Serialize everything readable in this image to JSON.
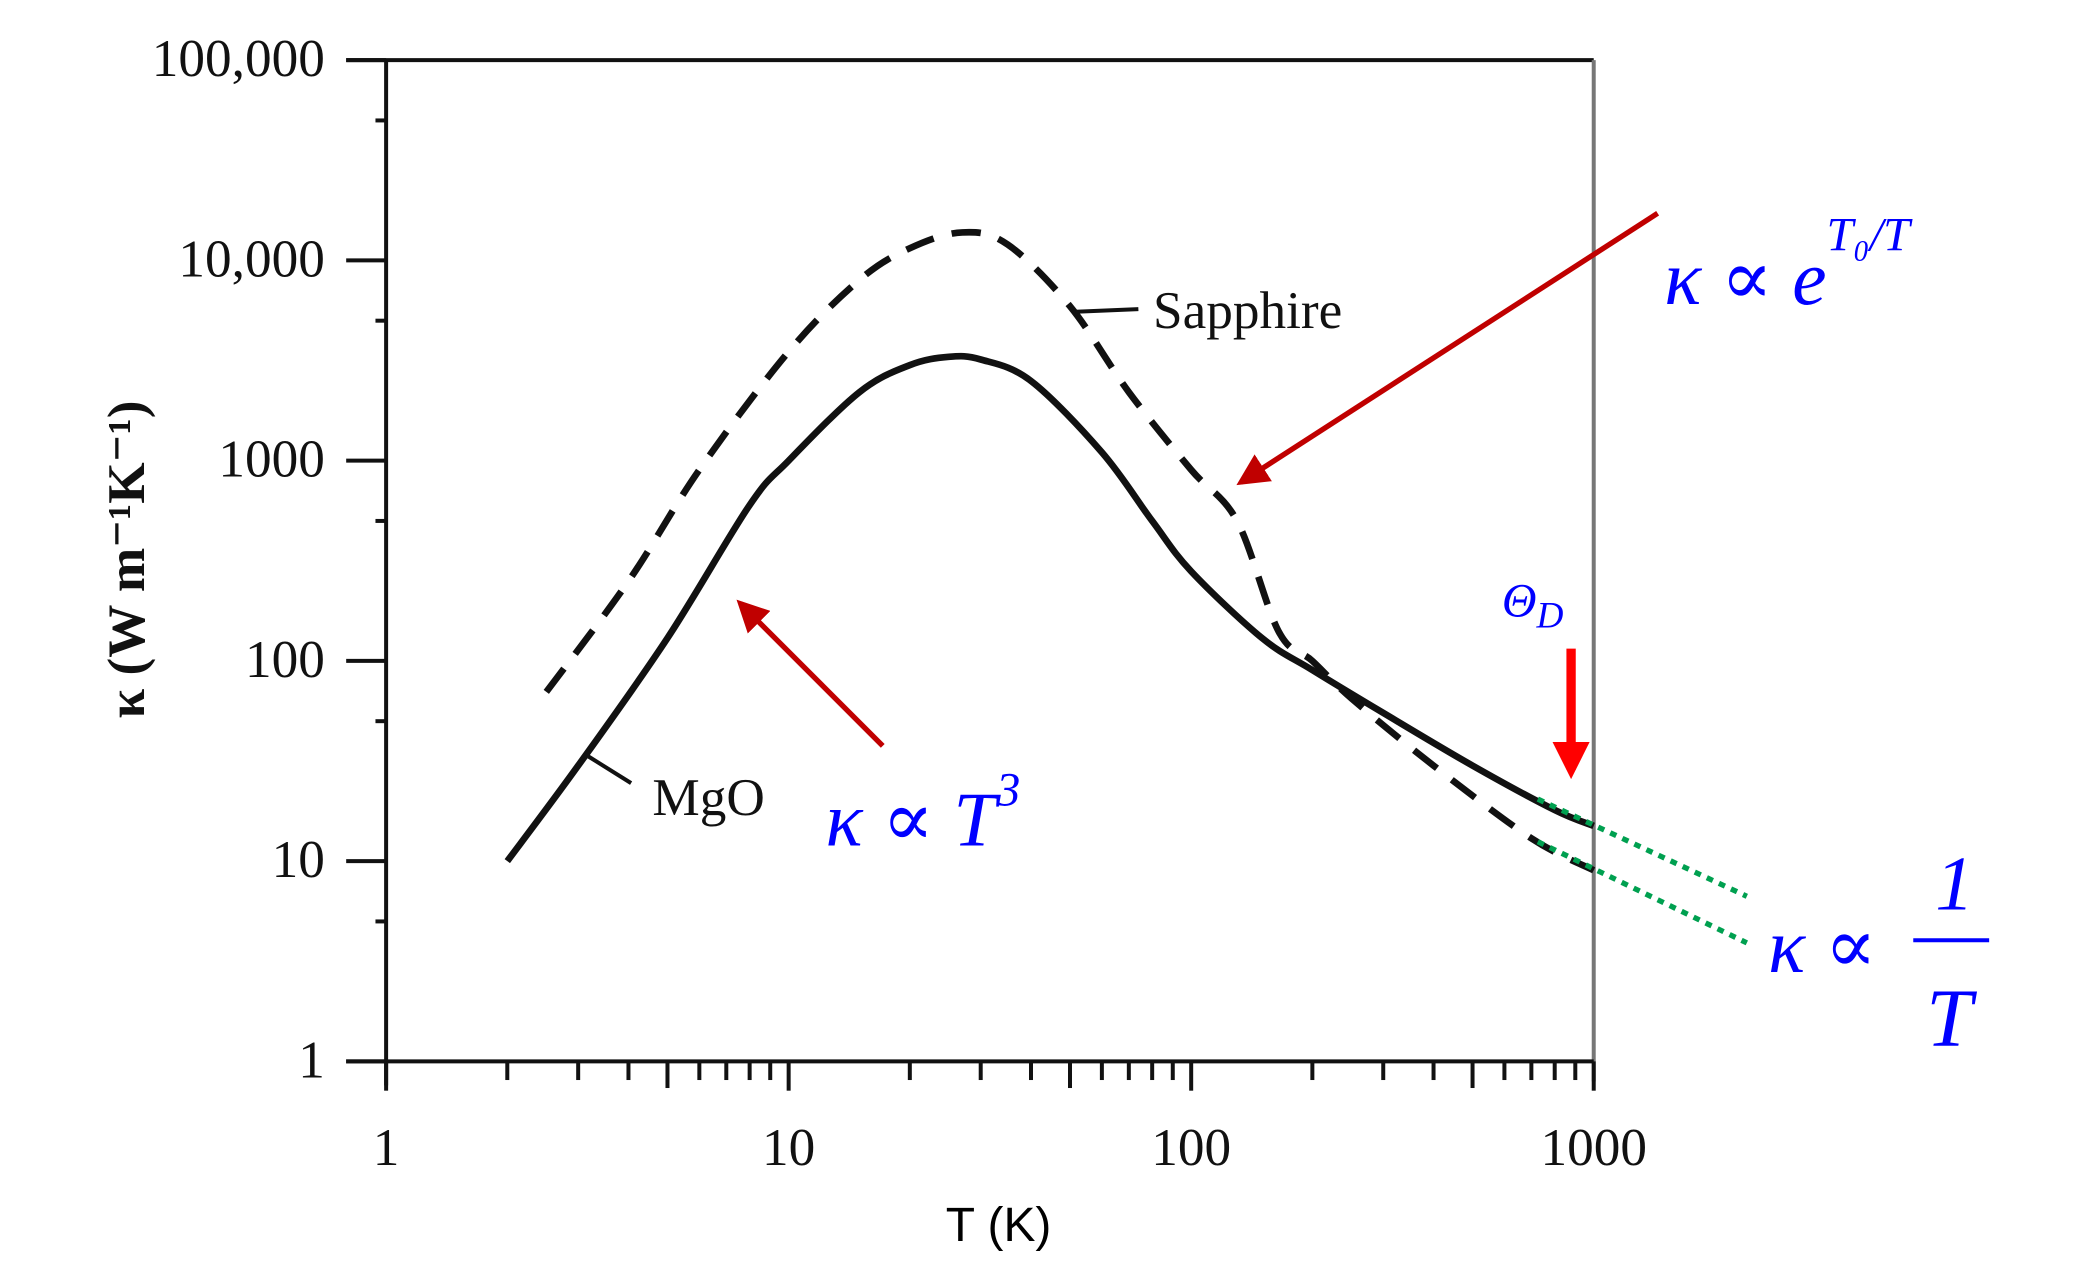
{
  "chart_data": {
    "type": "line",
    "title": "",
    "xlabel": "T (K)",
    "ylabel": "κ (W m⁻¹K⁻¹)",
    "xscale": "log",
    "yscale": "log",
    "xlim": [
      1,
      1000
    ],
    "ylim": [
      1,
      100000
    ],
    "x_tick_labels": [
      "1",
      "10",
      "100",
      "1000"
    ],
    "x_tick_values": [
      1,
      10,
      100,
      1000
    ],
    "y_tick_labels": [
      "1",
      "10",
      "100",
      "1000",
      "10,000",
      "100,000"
    ],
    "y_tick_values": [
      1,
      10,
      100,
      1000,
      10000,
      100000
    ],
    "grid": false,
    "series": [
      {
        "name": "MgO",
        "style": "solid",
        "x": [
          2,
          3,
          5,
          8,
          10,
          15,
          20,
          25,
          30,
          40,
          60,
          80,
          100,
          150,
          200,
          300,
          500,
          800,
          1000
        ],
        "y": [
          10,
          30,
          130,
          600,
          1000,
          2200,
          3000,
          3300,
          3200,
          2500,
          1100,
          500,
          280,
          130,
          90,
          55,
          30,
          18,
          15
        ]
      },
      {
        "name": "Sapphire",
        "style": "dashed",
        "x": [
          2.5,
          4,
          6,
          10,
          15,
          20,
          27,
          35,
          50,
          70,
          100,
          130,
          165,
          200,
          250,
          400,
          700,
          1000
        ],
        "y": [
          70,
          250,
          900,
          3500,
          8000,
          11500,
          13800,
          12000,
          5900,
          2200,
          900,
          500,
          140,
          100,
          65,
          30,
          13,
          9
        ]
      }
    ],
    "annotations": {
      "exp_law": {
        "base": "κ ∝ e",
        "exponent": "T₀/T"
      },
      "cube_law": {
        "base": "κ ∝ T",
        "exponent": "3"
      },
      "debye": {
        "symbol": "Θ",
        "subscript": "D",
        "T": 800
      },
      "inverse_law": {
        "prefix": "κ ∝",
        "numerator": "1",
        "denominator": "T"
      }
    },
    "colors": {
      "annotation_text": "#0000ff",
      "arrow_dark_red": "#c00000",
      "arrow_red": "#ff0000",
      "fit_green": "#00a050",
      "curve": "#111111"
    }
  }
}
